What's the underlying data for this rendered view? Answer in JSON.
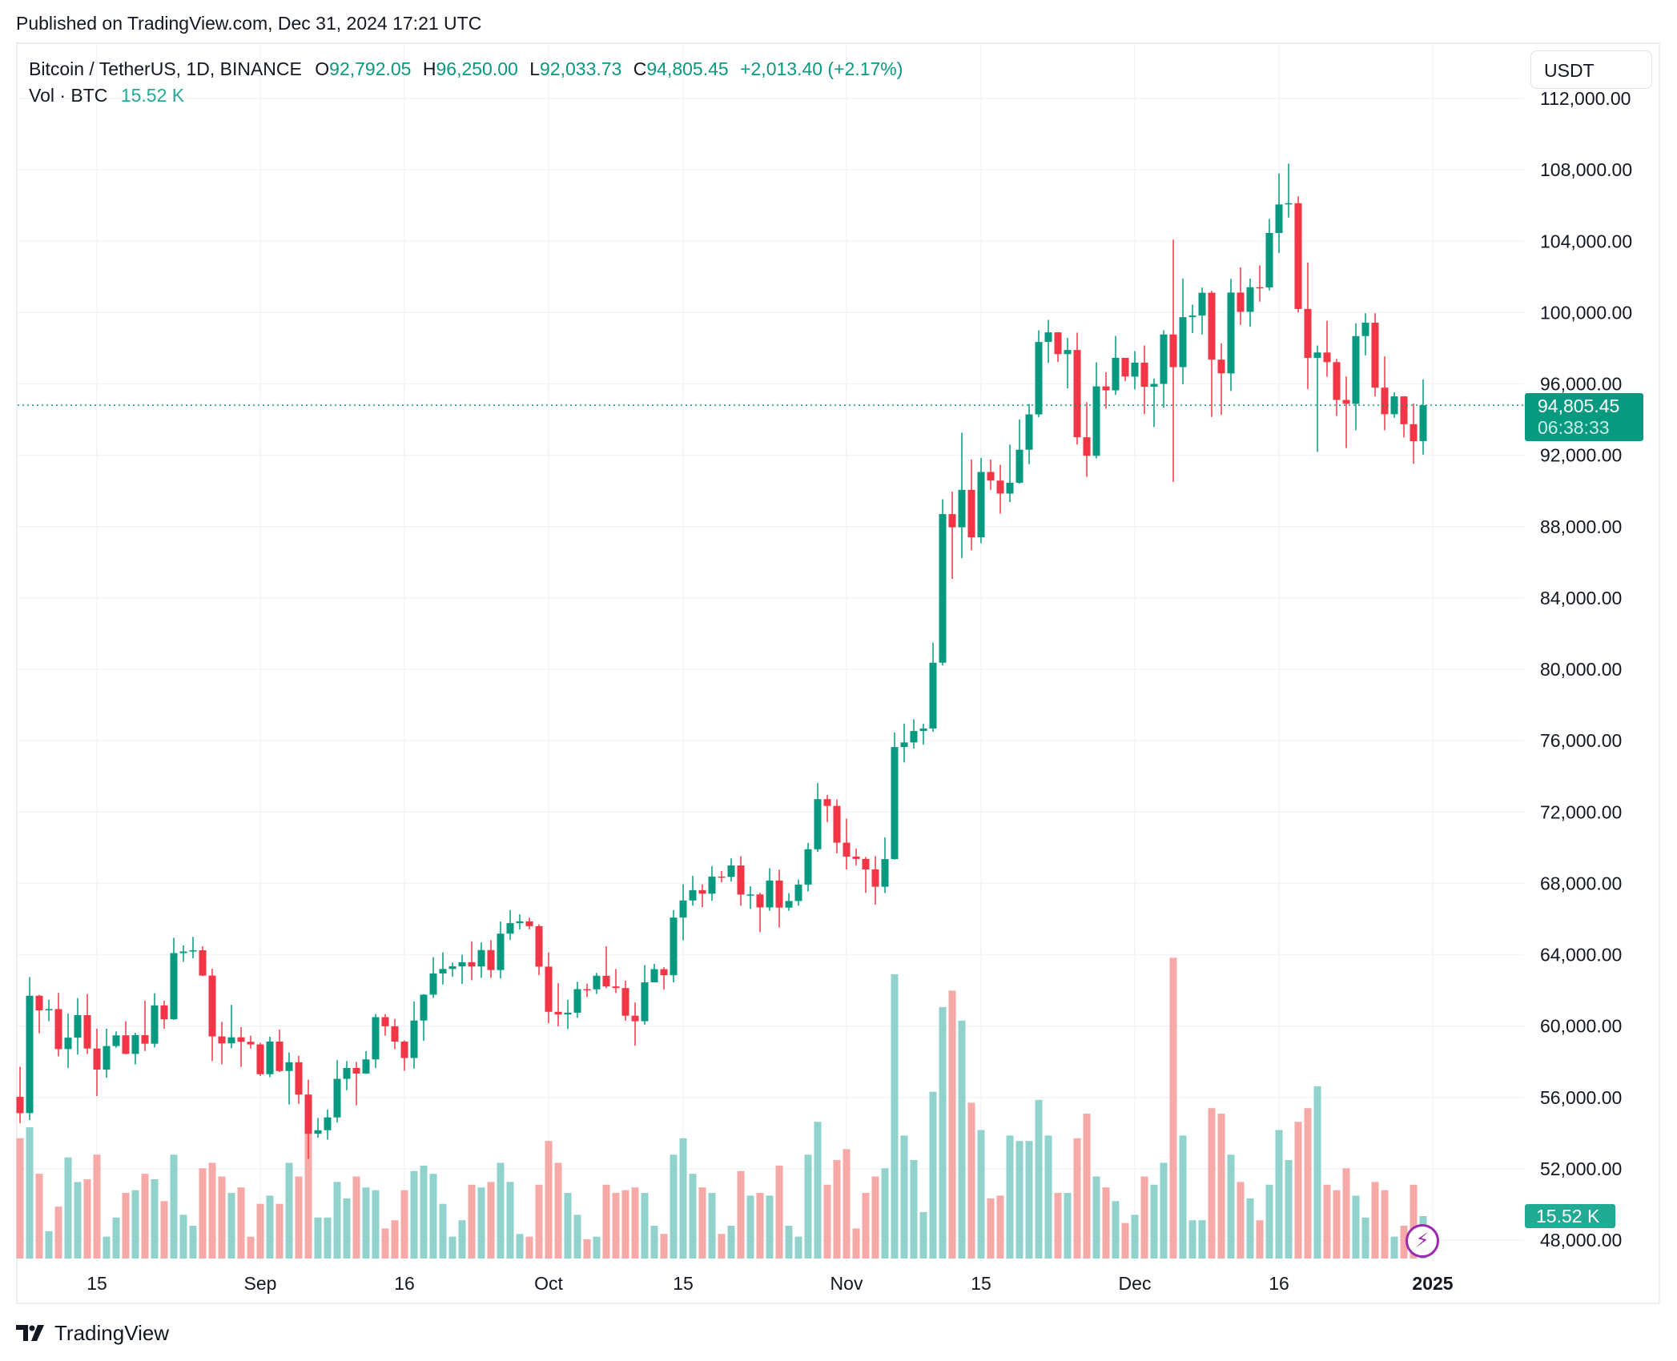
{
  "published": "Published on TradingView.com, Dec 31, 2024 17:21 UTC",
  "legend": {
    "symbol": "Bitcoin / TetherUS, 1D, BINANCE",
    "o_label": "O",
    "o": "92,792.05",
    "h_label": "H",
    "h": "96,250.00",
    "l_label": "L",
    "l": "92,033.73",
    "c_label": "C",
    "c": "94,805.45",
    "change": "+2,013.40 (+2.17%)",
    "vol_label": "Vol · BTC",
    "vol": "15.52 K"
  },
  "currency_button": "USDT",
  "last_price": {
    "price": "94,805.45",
    "countdown": "06:38:33"
  },
  "volume_tag": "15.52 K",
  "brand": "TradingView",
  "colors": {
    "up": "#089981",
    "down": "#F23645",
    "vol_up": "#92D2CC",
    "vol_down": "#F7A9A7",
    "accent_icon": "#9C27B0"
  },
  "icons": {
    "logo": "tradingview-logo-icon",
    "alert": "lightning-icon"
  },
  "chart_data": {
    "type": "candlestick",
    "ylim": [
      46000,
      112000
    ],
    "y_ticks": [
      "112,000.00",
      "108,000.00",
      "104,000.00",
      "100,000.00",
      "96,000.00",
      "92,000.00",
      "88,000.00",
      "84,000.00",
      "80,000.00",
      "76,000.00",
      "72,000.00",
      "68,000.00",
      "64,000.00",
      "60,000.00",
      "56,000.00",
      "52,000.00",
      "48,000.00"
    ],
    "x_ticks": [
      {
        "label": "15",
        "date": "2024-08-15"
      },
      {
        "label": "Sep",
        "date": "2024-09-01"
      },
      {
        "label": "16",
        "date": "2024-09-16"
      },
      {
        "label": "Oct",
        "date": "2024-10-01"
      },
      {
        "label": "15",
        "date": "2024-10-15"
      },
      {
        "label": "Nov",
        "date": "2024-11-01"
      },
      {
        "label": "15",
        "date": "2024-11-15"
      },
      {
        "label": "Dec",
        "date": "2024-12-01"
      },
      {
        "label": "16",
        "date": "2024-12-16"
      },
      {
        "label": "2025",
        "date": "2025-01-01"
      }
    ],
    "grid": true,
    "columns": [
      "date",
      "open",
      "high",
      "low",
      "close",
      "volume_k"
    ],
    "candles": [
      [
        "2024-08-07",
        56030,
        57720,
        54560,
        55120,
        44
      ],
      [
        "2024-08-08",
        55120,
        62750,
        54730,
        61700,
        48
      ],
      [
        "2024-08-09",
        61700,
        61750,
        59600,
        60880,
        31
      ],
      [
        "2024-08-10",
        60880,
        61470,
        60270,
        60950,
        10
      ],
      [
        "2024-08-11",
        60950,
        61860,
        58300,
        58710,
        19
      ],
      [
        "2024-08-12",
        58710,
        60700,
        57650,
        59350,
        37
      ],
      [
        "2024-08-13",
        59350,
        61570,
        58400,
        60610,
        28
      ],
      [
        "2024-08-14",
        60610,
        61800,
        58430,
        58740,
        29
      ],
      [
        "2024-08-15",
        58740,
        59850,
        56080,
        57560,
        38
      ],
      [
        "2024-08-16",
        57560,
        59850,
        57100,
        58880,
        8
      ],
      [
        "2024-08-17",
        58880,
        59700,
        58780,
        59480,
        15
      ],
      [
        "2024-08-18",
        59480,
        60270,
        58420,
        58440,
        24
      ],
      [
        "2024-08-19",
        58440,
        59620,
        57850,
        59490,
        25
      ],
      [
        "2024-08-20",
        59490,
        61430,
        58600,
        59010,
        31
      ],
      [
        "2024-08-21",
        59010,
        61840,
        58800,
        61160,
        29
      ],
      [
        "2024-08-22",
        61160,
        61420,
        59850,
        60380,
        21
      ],
      [
        "2024-08-23",
        60380,
        64950,
        60350,
        64090,
        38
      ],
      [
        "2024-08-24",
        64090,
        64520,
        63600,
        64180,
        16
      ],
      [
        "2024-08-25",
        64180,
        65000,
        63800,
        64250,
        12
      ],
      [
        "2024-08-26",
        64250,
        64480,
        62800,
        62830,
        33
      ],
      [
        "2024-08-27",
        62830,
        63210,
        58030,
        59420,
        35
      ],
      [
        "2024-08-28",
        59420,
        60230,
        57860,
        59030,
        30
      ],
      [
        "2024-08-29",
        59030,
        61190,
        58750,
        59370,
        24
      ],
      [
        "2024-08-30",
        59370,
        59940,
        57700,
        59120,
        26
      ],
      [
        "2024-08-31",
        59120,
        59460,
        58740,
        58970,
        8
      ],
      [
        "2024-09-01",
        58970,
        59060,
        57200,
        57300,
        20
      ],
      [
        "2024-09-02",
        57300,
        59400,
        57130,
        59130,
        23
      ],
      [
        "2024-09-03",
        59130,
        59810,
        57420,
        57480,
        20
      ],
      [
        "2024-09-04",
        57480,
        58520,
        55600,
        57970,
        35
      ],
      [
        "2024-09-05",
        57970,
        58330,
        55640,
        56160,
        30
      ],
      [
        "2024-09-06",
        56160,
        56990,
        52550,
        53960,
        52
      ],
      [
        "2024-09-07",
        53960,
        54850,
        53740,
        54160,
        15
      ],
      [
        "2024-09-08",
        54160,
        55320,
        53630,
        54880,
        15
      ],
      [
        "2024-09-09",
        54880,
        58090,
        54590,
        57040,
        28
      ],
      [
        "2024-09-10",
        57040,
        58040,
        56400,
        57650,
        22
      ],
      [
        "2024-09-11",
        57650,
        57990,
        55550,
        57340,
        30
      ],
      [
        "2024-09-12",
        57340,
        58590,
        57320,
        58130,
        26
      ],
      [
        "2024-09-13",
        58130,
        60680,
        57650,
        60500,
        25
      ],
      [
        "2024-09-14",
        60500,
        60670,
        59460,
        59990,
        11
      ],
      [
        "2024-09-15",
        59990,
        60400,
        58700,
        59130,
        14
      ],
      [
        "2024-09-16",
        59130,
        59200,
        57490,
        58210,
        25
      ],
      [
        "2024-09-17",
        58210,
        61380,
        57610,
        60310,
        32
      ],
      [
        "2024-09-18",
        60310,
        61790,
        59170,
        61760,
        34
      ],
      [
        "2024-09-19",
        61760,
        63870,
        61580,
        62950,
        31
      ],
      [
        "2024-09-20",
        62950,
        64130,
        62330,
        63200,
        20
      ],
      [
        "2024-09-21",
        63200,
        63560,
        62760,
        63350,
        8
      ],
      [
        "2024-09-22",
        63350,
        64000,
        62360,
        63580,
        14
      ],
      [
        "2024-09-23",
        63580,
        64750,
        62570,
        63340,
        27
      ],
      [
        "2024-09-24",
        63340,
        64690,
        62700,
        64260,
        26
      ],
      [
        "2024-09-25",
        64260,
        64820,
        62700,
        63140,
        28
      ],
      [
        "2024-09-26",
        63140,
        65860,
        62670,
        65180,
        35
      ],
      [
        "2024-09-27",
        65180,
        66500,
        64830,
        65770,
        28
      ],
      [
        "2024-09-28",
        65770,
        66260,
        65420,
        65870,
        9
      ],
      [
        "2024-09-29",
        65870,
        66080,
        65420,
        65600,
        8
      ],
      [
        "2024-09-30",
        65600,
        65700,
        62860,
        63330,
        27
      ],
      [
        "2024-10-01",
        63330,
        64130,
        60160,
        60800,
        43
      ],
      [
        "2024-10-02",
        60800,
        62400,
        59980,
        60650,
        35
      ],
      [
        "2024-10-03",
        60650,
        61470,
        59830,
        60750,
        24
      ],
      [
        "2024-10-04",
        60750,
        62480,
        60460,
        62070,
        16
      ],
      [
        "2024-10-05",
        62070,
        62370,
        61620,
        62060,
        7
      ],
      [
        "2024-10-06",
        62060,
        62980,
        61800,
        62820,
        8
      ],
      [
        "2024-10-07",
        62820,
        64480,
        62120,
        62220,
        27
      ],
      [
        "2024-10-08",
        62220,
        63200,
        61850,
        62130,
        24
      ],
      [
        "2024-10-09",
        62130,
        62540,
        60300,
        60580,
        25
      ],
      [
        "2024-10-10",
        60580,
        61320,
        58900,
        60270,
        26
      ],
      [
        "2024-10-11",
        60270,
        63420,
        60080,
        62450,
        24
      ],
      [
        "2024-10-12",
        62450,
        63480,
        62450,
        63190,
        12
      ],
      [
        "2024-10-13",
        63190,
        63300,
        62050,
        62850,
        9
      ],
      [
        "2024-10-14",
        62850,
        66500,
        62450,
        66080,
        38
      ],
      [
        "2024-10-15",
        66080,
        67950,
        64800,
        67040,
        44
      ],
      [
        "2024-10-16",
        67040,
        68420,
        66750,
        67620,
        31
      ],
      [
        "2024-10-17",
        67620,
        67940,
        66660,
        67420,
        26
      ],
      [
        "2024-10-18",
        67420,
        68970,
        67020,
        68380,
        24
      ],
      [
        "2024-10-19",
        68380,
        68690,
        68050,
        68360,
        9
      ],
      [
        "2024-10-20",
        68360,
        69400,
        68100,
        69000,
        12
      ],
      [
        "2024-10-21",
        69000,
        69520,
        66750,
        67370,
        32
      ],
      [
        "2024-10-22",
        67370,
        67840,
        66570,
        67380,
        23
      ],
      [
        "2024-10-23",
        67380,
        67470,
        65260,
        66650,
        24
      ],
      [
        "2024-10-24",
        66650,
        68850,
        66460,
        68160,
        23
      ],
      [
        "2024-10-25",
        68160,
        68770,
        65520,
        66640,
        34
      ],
      [
        "2024-10-26",
        66640,
        67450,
        66460,
        67010,
        12
      ],
      [
        "2024-10-27",
        67010,
        68220,
        66750,
        67930,
        8
      ],
      [
        "2024-10-28",
        67930,
        70270,
        67550,
        69910,
        38
      ],
      [
        "2024-10-29",
        69910,
        73620,
        69760,
        72720,
        50
      ],
      [
        "2024-10-30",
        72720,
        72960,
        71440,
        72340,
        27
      ],
      [
        "2024-10-31",
        72340,
        72700,
        69680,
        70280,
        36
      ],
      [
        "2024-11-01",
        70280,
        71630,
        68780,
        69500,
        40
      ],
      [
        "2024-11-02",
        69500,
        69950,
        69000,
        69370,
        11
      ],
      [
        "2024-11-03",
        69370,
        69480,
        67470,
        68780,
        24
      ],
      [
        "2024-11-04",
        68780,
        69530,
        66800,
        67810,
        30
      ],
      [
        "2024-11-05",
        67810,
        70580,
        67460,
        69360,
        33
      ],
      [
        "2024-11-06",
        69360,
        76460,
        69330,
        75640,
        104
      ],
      [
        "2024-11-07",
        75640,
        76950,
        74780,
        75900,
        45
      ],
      [
        "2024-11-08",
        75900,
        77200,
        75560,
        76540,
        36
      ],
      [
        "2024-11-09",
        76540,
        76950,
        75770,
        76680,
        17
      ],
      [
        "2024-11-10",
        76680,
        81500,
        76490,
        80370,
        61
      ],
      [
        "2024-11-11",
        80370,
        89530,
        80220,
        88700,
        92
      ],
      [
        "2024-11-12",
        88700,
        89960,
        85070,
        87960,
        98
      ],
      [
        "2024-11-13",
        87960,
        93260,
        86230,
        90060,
        87
      ],
      [
        "2024-11-14",
        90060,
        91770,
        86670,
        87400,
        57
      ],
      [
        "2024-11-15",
        87400,
        91850,
        87070,
        91060,
        47
      ],
      [
        "2024-11-16",
        91060,
        91760,
        90060,
        90580,
        22
      ],
      [
        "2024-11-17",
        90580,
        91460,
        88720,
        89850,
        23
      ],
      [
        "2024-11-18",
        89850,
        92600,
        89380,
        90460,
        45
      ],
      [
        "2024-11-19",
        90460,
        94000,
        90410,
        92310,
        43
      ],
      [
        "2024-11-20",
        92310,
        94880,
        91500,
        94290,
        43
      ],
      [
        "2024-11-21",
        94290,
        99000,
        94130,
        98350,
        58
      ],
      [
        "2024-11-22",
        98350,
        99590,
        97170,
        98890,
        45
      ],
      [
        "2024-11-23",
        98890,
        98900,
        97230,
        97670,
        24
      ],
      [
        "2024-11-24",
        97670,
        98580,
        95750,
        97900,
        24
      ],
      [
        "2024-11-25",
        97900,
        98870,
        92600,
        93010,
        44
      ],
      [
        "2024-11-26",
        93010,
        94970,
        90790,
        91970,
        53
      ],
      [
        "2024-11-27",
        91970,
        97210,
        91820,
        95860,
        30
      ],
      [
        "2024-11-28",
        95860,
        96650,
        94610,
        95640,
        26
      ],
      [
        "2024-11-29",
        95640,
        98690,
        95380,
        97460,
        21
      ],
      [
        "2024-11-30",
        97460,
        97460,
        96150,
        96410,
        13
      ],
      [
        "2024-12-01",
        96410,
        97840,
        95690,
        97190,
        16
      ],
      [
        "2024-12-02",
        97190,
        98150,
        94300,
        95840,
        30
      ],
      [
        "2024-12-03",
        95840,
        96300,
        93580,
        96000,
        27
      ],
      [
        "2024-12-04",
        96000,
        99000,
        94660,
        98770,
        35
      ],
      [
        "2024-12-05",
        98770,
        104090,
        90500,
        96940,
        110
      ],
      [
        "2024-12-06",
        96940,
        101900,
        95980,
        99740,
        45
      ],
      [
        "2024-12-07",
        99740,
        100440,
        98850,
        99830,
        14
      ],
      [
        "2024-12-08",
        99830,
        101400,
        98770,
        101110,
        14
      ],
      [
        "2024-12-09",
        101110,
        101220,
        94150,
        97360,
        55
      ],
      [
        "2024-12-10",
        97360,
        98270,
        94260,
        96590,
        53
      ],
      [
        "2024-12-11",
        96590,
        101890,
        95600,
        101120,
        38
      ],
      [
        "2024-12-12",
        101120,
        102540,
        99310,
        100040,
        28
      ],
      [
        "2024-12-13",
        100040,
        101900,
        99210,
        101420,
        22
      ],
      [
        "2024-12-14",
        101420,
        102650,
        100610,
        101410,
        14
      ],
      [
        "2024-12-15",
        101410,
        105250,
        101240,
        104460,
        27
      ],
      [
        "2024-12-16",
        104460,
        107790,
        103330,
        106060,
        47
      ],
      [
        "2024-12-17",
        106060,
        108350,
        105320,
        106130,
        36
      ],
      [
        "2024-12-18",
        106130,
        106520,
        100000,
        100200,
        50
      ],
      [
        "2024-12-19",
        100200,
        102800,
        95700,
        97460,
        55
      ],
      [
        "2024-12-20",
        97460,
        98150,
        92180,
        97760,
        63
      ],
      [
        "2024-12-21",
        97760,
        99540,
        96400,
        97220,
        27
      ],
      [
        "2024-12-22",
        97220,
        97400,
        94200,
        95100,
        25
      ],
      [
        "2024-12-23",
        95100,
        96420,
        92400,
        94880,
        33
      ],
      [
        "2024-12-24",
        94880,
        99400,
        93400,
        98680,
        23
      ],
      [
        "2024-12-25",
        98680,
        99960,
        97600,
        99430,
        15
      ],
      [
        "2024-12-26",
        99430,
        99960,
        95300,
        95790,
        28
      ],
      [
        "2024-12-27",
        95790,
        97540,
        93400,
        94300,
        25
      ],
      [
        "2024-12-28",
        94300,
        95530,
        94100,
        95300,
        8
      ],
      [
        "2024-12-29",
        95300,
        95300,
        93000,
        93740,
        12
      ],
      [
        "2024-12-30",
        93740,
        94900,
        91530,
        92790,
        27
      ],
      [
        "2024-12-31",
        92792.05,
        96250,
        92033.73,
        94805.45,
        15.52
      ]
    ],
    "last_price": 94805.45
  }
}
